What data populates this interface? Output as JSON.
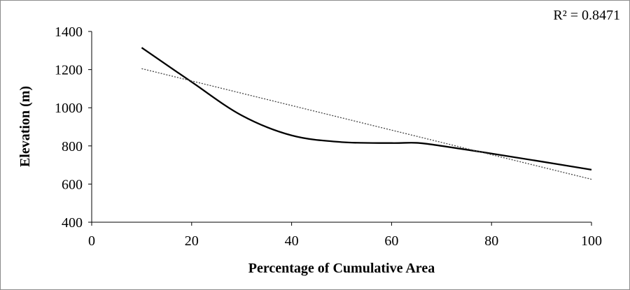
{
  "chart_data": {
    "type": "line",
    "title": "",
    "xlabel": "Percentage of Cumulative Area",
    "ylabel": "Elevation (m)",
    "xlim": [
      0,
      100
    ],
    "ylim": [
      400,
      1400
    ],
    "xticks": [
      0,
      20,
      40,
      60,
      80,
      100
    ],
    "yticks": [
      400,
      600,
      800,
      1000,
      1200,
      1400
    ],
    "grid": false,
    "legend": "none",
    "annotation": "R² = 0.8471",
    "series": [
      {
        "style": "solid",
        "color": "#000000",
        "x": [
          10,
          20,
          30,
          40,
          50,
          60,
          65,
          70,
          80,
          90,
          100
        ],
        "y": [
          1315,
          1135,
          960,
          855,
          820,
          815,
          816,
          800,
          760,
          718,
          675
        ]
      },
      {
        "style": "dotted",
        "color": "#444444",
        "x": [
          10,
          100
        ],
        "y": [
          1205,
          625
        ]
      }
    ]
  }
}
